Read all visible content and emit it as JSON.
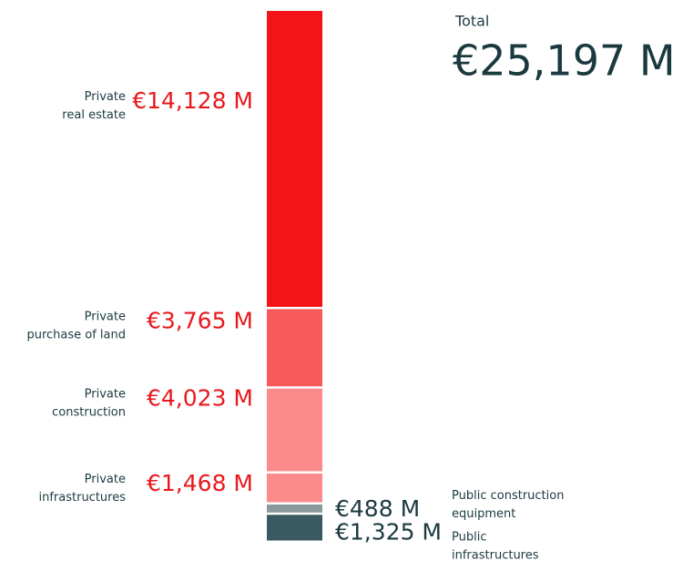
{
  "chart_data": {
    "type": "stacked-bar",
    "total": {
      "label": "Total",
      "value": 25197,
      "value_label": "€25,197 M"
    },
    "series": [
      {
        "name": "Private\nreal estate",
        "color": "#f21418",
        "values": [
          14128
        ],
        "value_labels": [
          "€14,128 M"
        ],
        "side": "left"
      },
      {
        "name": "Private\npurchase of land",
        "color": "#f85a5c",
        "values": [
          3765
        ],
        "value_labels": [
          "€3,765 M"
        ],
        "side": "left"
      },
      {
        "name": "Private\nconstruction",
        "color": "#fb8a8b",
        "values": [
          4023
        ],
        "value_labels": [
          "€4,023 M"
        ],
        "side": "left"
      },
      {
        "name": "Private\ninfrastructures",
        "color": "#fb8a8b",
        "values": [
          1468
        ],
        "value_labels": [
          "€1,468 M"
        ],
        "side": "left"
      },
      {
        "name": "Public construction\nequipment",
        "color": "#8a9a9c",
        "values": [
          488
        ],
        "value_labels": [
          "€488 M"
        ],
        "side": "right"
      },
      {
        "name": "Public\ninfrastructures",
        "color": "#3a5960",
        "values": [
          1325
        ],
        "value_labels": [
          "€1,325 M"
        ],
        "side": "right"
      }
    ]
  }
}
